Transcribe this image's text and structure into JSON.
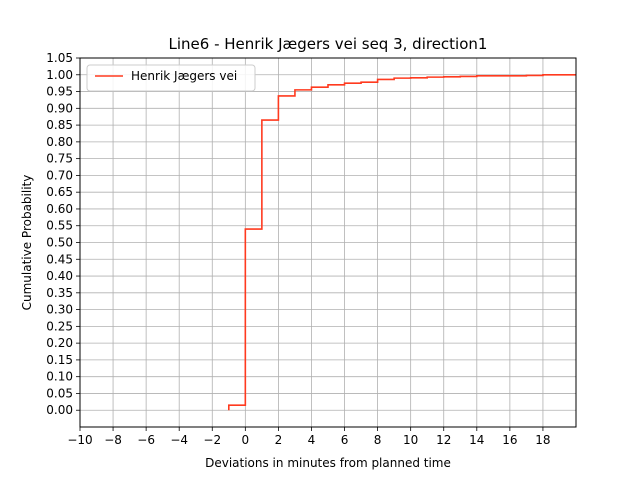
{
  "chart_data": {
    "type": "line",
    "drawstyle": "steps-post",
    "title": "Line6 - Henrik Jægers vei seq 3, direction1",
    "xlabel": "Deviations in minutes from planned time",
    "ylabel": "Cumulative Probability",
    "xlim": [
      -10,
      20
    ],
    "ylim": [
      -0.05,
      1.05
    ],
    "x_ticks": [
      -10,
      -8,
      -6,
      -4,
      -2,
      0,
      2,
      4,
      6,
      8,
      10,
      12,
      14,
      16,
      18
    ],
    "x_tick_labels": [
      "−10",
      "−8",
      "−6",
      "−4",
      "−2",
      "0",
      "2",
      "4",
      "6",
      "8",
      "10",
      "12",
      "14",
      "16",
      "18"
    ],
    "y_ticks": [
      0.0,
      0.05,
      0.1,
      0.15,
      0.2,
      0.25,
      0.3,
      0.35,
      0.4,
      0.45,
      0.5,
      0.55,
      0.6,
      0.65,
      0.7,
      0.75,
      0.8,
      0.85,
      0.9,
      0.95,
      1.0,
      1.05
    ],
    "y_tick_labels": [
      "0.00",
      "0.05",
      "0.10",
      "0.15",
      "0.20",
      "0.25",
      "0.30",
      "0.35",
      "0.40",
      "0.45",
      "0.50",
      "0.55",
      "0.60",
      "0.65",
      "0.70",
      "0.75",
      "0.80",
      "0.85",
      "0.90",
      "0.95",
      "1.00",
      "1.05"
    ],
    "grid": true,
    "legend_position": "upper-left",
    "series": [
      {
        "name": "Henrik Jægers vei",
        "color": "#ff3a1f",
        "x": [
          -1,
          0,
          1,
          2,
          3,
          4,
          5,
          6,
          7,
          8,
          9,
          10,
          11,
          12,
          13,
          14,
          15,
          16,
          17,
          18,
          20
        ],
        "y": [
          0.015,
          0.54,
          0.865,
          0.937,
          0.955,
          0.963,
          0.97,
          0.975,
          0.978,
          0.986,
          0.99,
          0.991,
          0.993,
          0.994,
          0.995,
          0.997,
          0.997,
          0.997,
          0.998,
          1.0,
          1.0
        ]
      }
    ]
  }
}
